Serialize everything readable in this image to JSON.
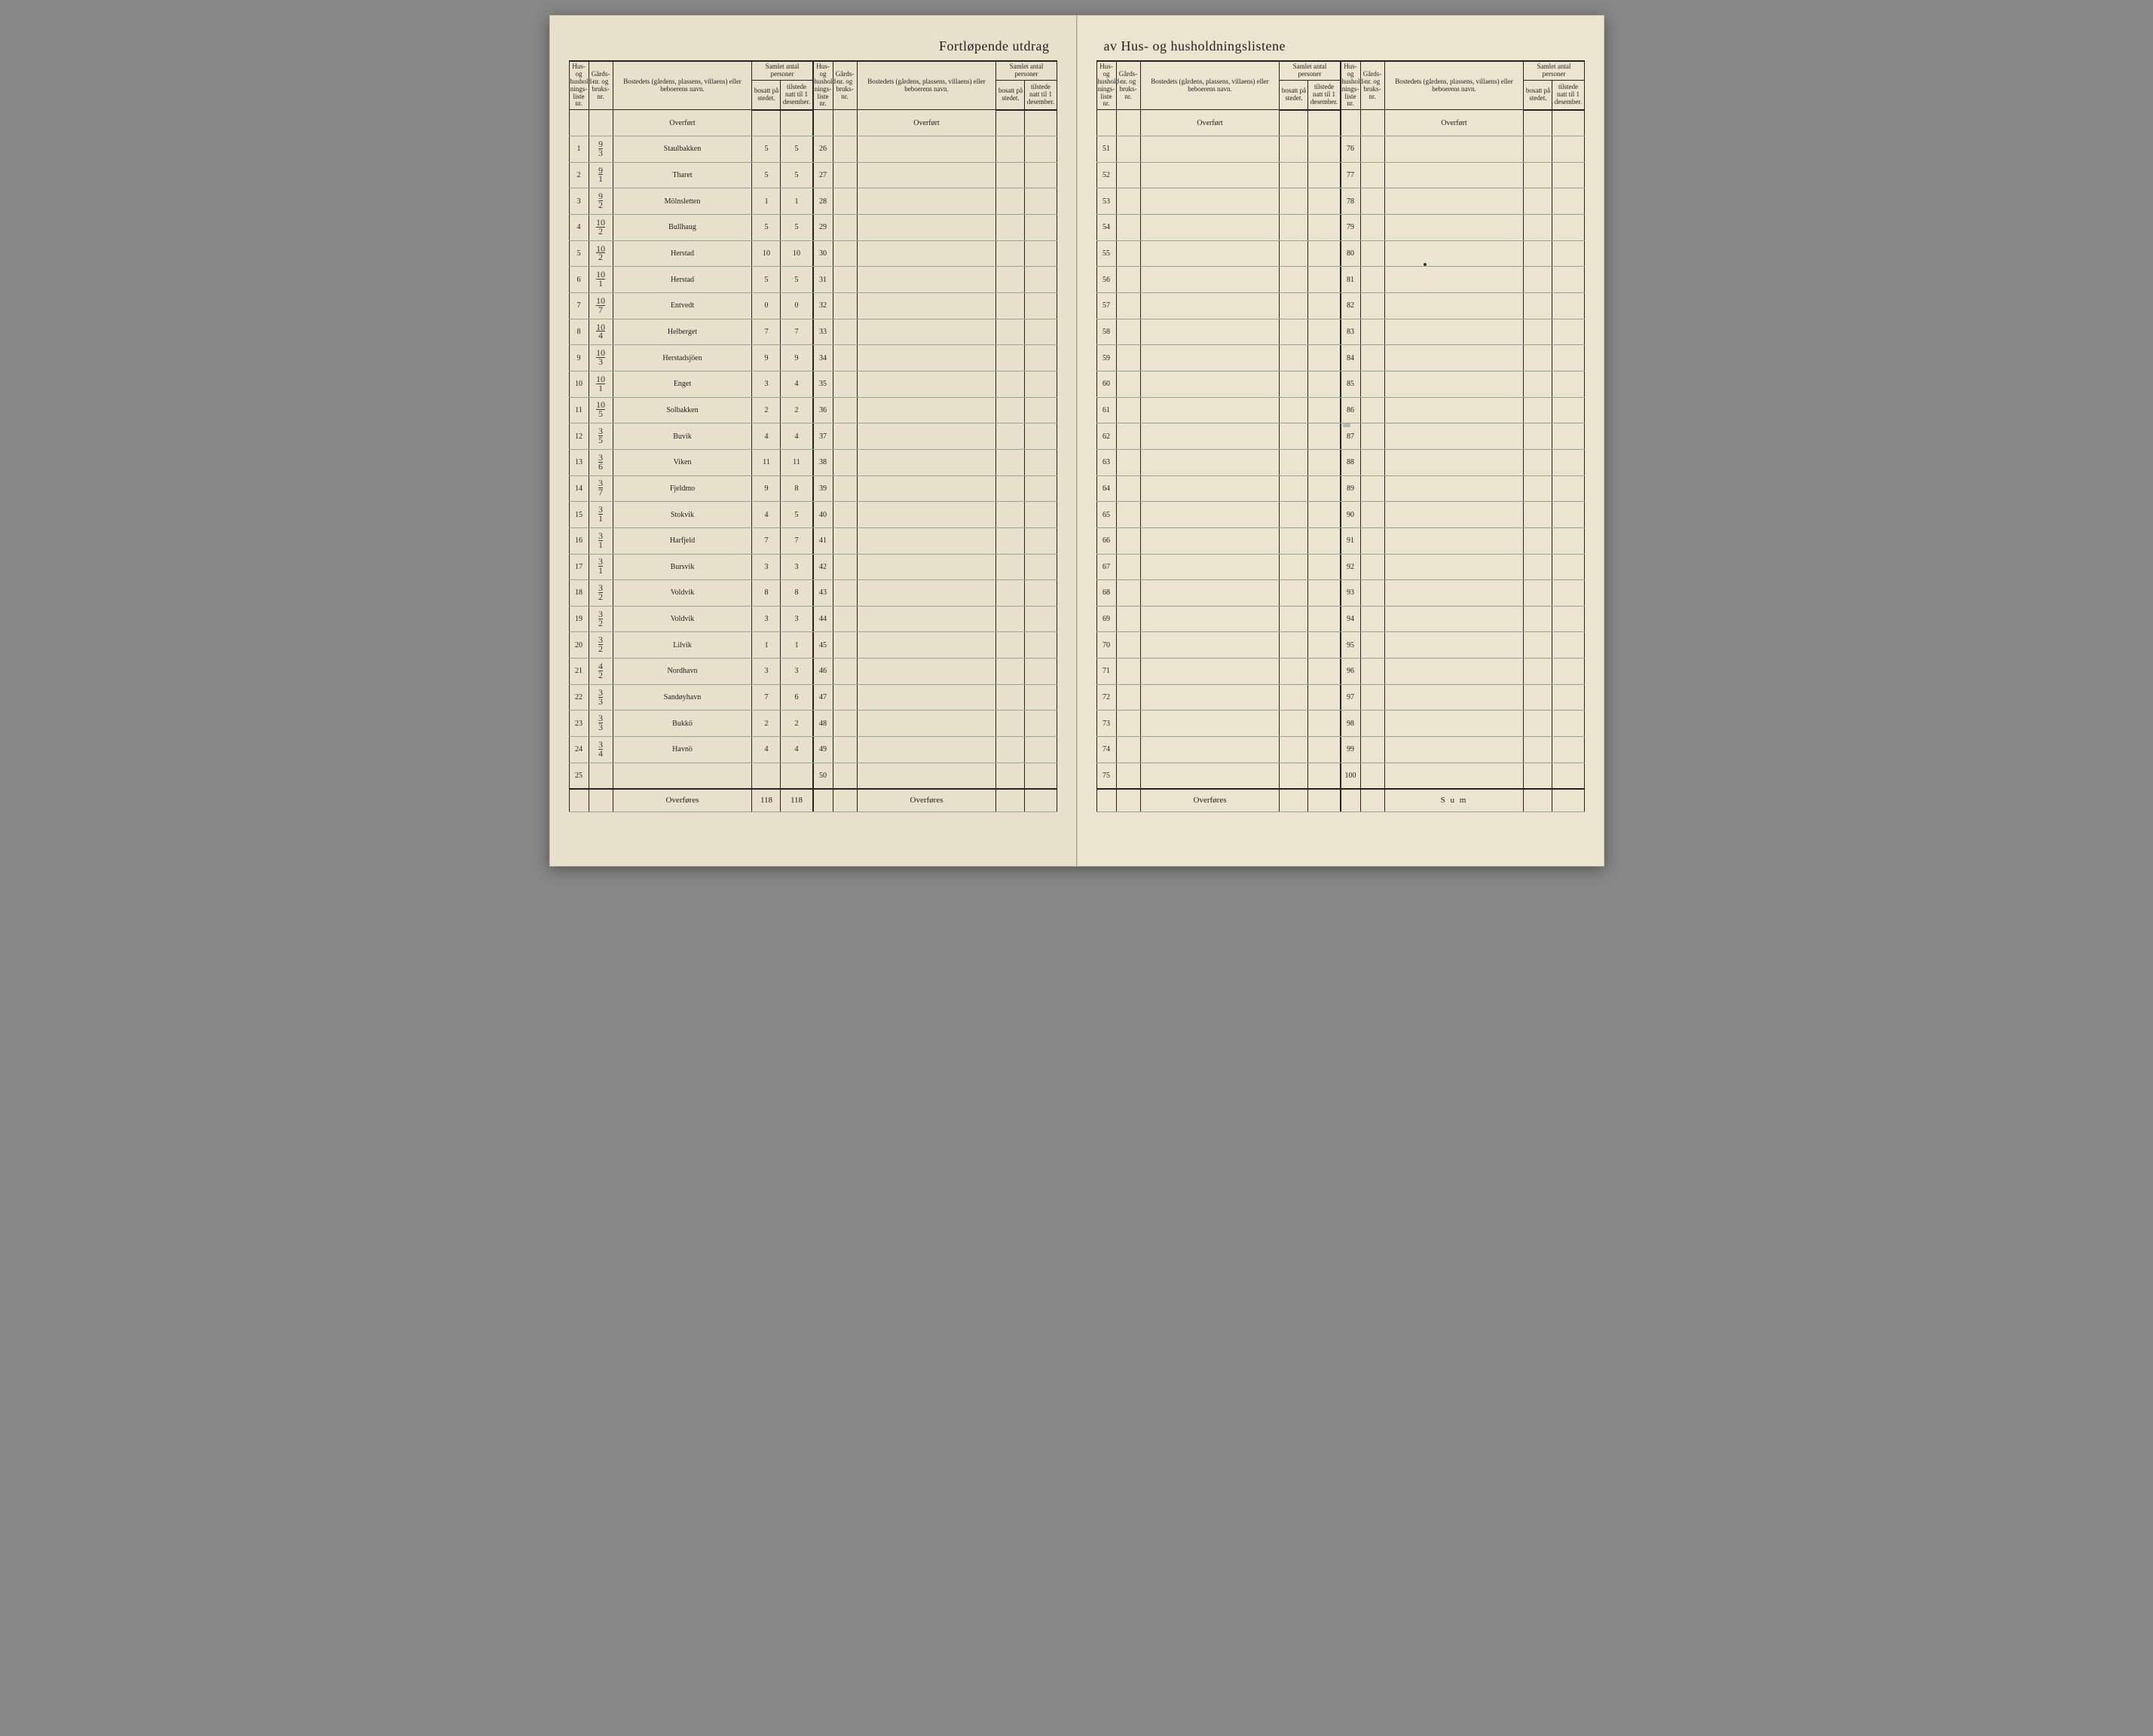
{
  "title_left": "Fortløpende  utdrag",
  "title_right": "av  Hus-  og  husholdningslistene",
  "headers": {
    "liste": "Hus- og hushold-nings-liste nr.",
    "gards": "Gårds-nr. og bruks-nr.",
    "bosted": "Bostedets (gårdens, plassens, villaens) eller beboerens navn.",
    "samlet_group": "Samlet antal personer",
    "bosatt": "bosatt på stedet.",
    "tilstede": "tilstede natt til 1 desember."
  },
  "overfort": "Overført",
  "overfores": "Overføres",
  "sum": "S u m",
  "entries": [
    {
      "n": "1",
      "g_top": "9",
      "g_bot": "3",
      "name": "Staulbakken",
      "b": "5",
      "t": "5"
    },
    {
      "n": "2",
      "g_top": "9",
      "g_bot": "1",
      "name": "Tharet",
      "b": "5",
      "t": "5"
    },
    {
      "n": "3",
      "g_top": "9",
      "g_bot": "2",
      "name": "Mölnsletten",
      "b": "1",
      "t": "1"
    },
    {
      "n": "4",
      "g_top": "10",
      "g_bot": "2",
      "name": "Bullhaug",
      "b": "5",
      "t": "5"
    },
    {
      "n": "5",
      "g_top": "10",
      "g_bot": "2",
      "name": "Herstad",
      "b": "10",
      "t": "10"
    },
    {
      "n": "6",
      "g_top": "10",
      "g_bot": "1",
      "name": "Herstad",
      "b": "5",
      "t": "5"
    },
    {
      "n": "7",
      "g_top": "10",
      "g_bot": "7",
      "name": "Entvedt",
      "b": "0",
      "t": "0"
    },
    {
      "n": "8",
      "g_top": "10",
      "g_bot": "4",
      "name": "Helberget",
      "b": "7",
      "t": "7"
    },
    {
      "n": "9",
      "g_top": "10",
      "g_bot": "3",
      "name": "Herstadsjöen",
      "b": "9",
      "t": "9"
    },
    {
      "n": "10",
      "g_top": "10",
      "g_bot": "1",
      "name": "Enget",
      "b": "3",
      "t": "4"
    },
    {
      "n": "11",
      "g_top": "10",
      "g_bot": "5",
      "name": "Solbakken",
      "b": "2",
      "t": "2"
    },
    {
      "n": "12",
      "g_top": "3",
      "g_bot": "5",
      "name": "Buvik",
      "b": "4",
      "t": "4"
    },
    {
      "n": "13",
      "g_top": "3",
      "g_bot": "6",
      "name": "Viken",
      "b": "11",
      "t": "11"
    },
    {
      "n": "14",
      "g_top": "3",
      "g_bot": "7",
      "name": "Fjeldmo",
      "b": "9",
      "t": "8"
    },
    {
      "n": "15",
      "g_top": "3",
      "g_bot": "1",
      "name": "Stokvik",
      "b": "4",
      "t": "5"
    },
    {
      "n": "16",
      "g_top": "3",
      "g_bot": "1",
      "name": "Harfjeld",
      "b": "7",
      "t": "7"
    },
    {
      "n": "17",
      "g_top": "3",
      "g_bot": "1",
      "name": "Bursvik",
      "b": "3",
      "t": "3"
    },
    {
      "n": "18",
      "g_top": "3",
      "g_bot": "2",
      "name": "Voldvik",
      "b": "8",
      "t": "8"
    },
    {
      "n": "19",
      "g_top": "3",
      "g_bot": "2",
      "name": "Voldvik",
      "b": "3",
      "t": "3"
    },
    {
      "n": "20",
      "g_top": "3",
      "g_bot": "2",
      "name": "Lilvik",
      "b": "1",
      "t": "1"
    },
    {
      "n": "21",
      "g_top": "4",
      "g_bot": "2",
      "name": "Nordhavn",
      "b": "3",
      "t": "3"
    },
    {
      "n": "22",
      "g_top": "3",
      "g_bot": "3",
      "name": "Sandøyhavn",
      "b": "7",
      "t": "6"
    },
    {
      "n": "23",
      "g_top": "3",
      "g_bot": "3",
      "name": "Bukkö",
      "b": "2",
      "t": "2"
    },
    {
      "n": "24",
      "g_top": "3",
      "g_bot": "4",
      "name": "Havnö",
      "b": "4",
      "t": "4"
    },
    {
      "n": "25",
      "g_top": "",
      "g_bot": "",
      "name": "",
      "b": "",
      "t": ""
    }
  ],
  "totals": {
    "b": "118",
    "t": "118"
  },
  "col2_rows": [
    "26",
    "27",
    "28",
    "29",
    "30",
    "31",
    "32",
    "33",
    "34",
    "35",
    "36",
    "37",
    "38",
    "39",
    "40",
    "41",
    "42",
    "43",
    "44",
    "45",
    "46",
    "47",
    "48",
    "49",
    "50"
  ],
  "col3_rows": [
    "51",
    "52",
    "53",
    "54",
    "55",
    "56",
    "57",
    "58",
    "59",
    "60",
    "61",
    "62",
    "63",
    "64",
    "65",
    "66",
    "67",
    "68",
    "69",
    "70",
    "71",
    "72",
    "73",
    "74",
    "75"
  ],
  "col4_rows": [
    "76",
    "77",
    "78",
    "79",
    "80",
    "81",
    "82",
    "83",
    "84",
    "85",
    "86",
    "87",
    "88",
    "89",
    "90",
    "91",
    "92",
    "93",
    "94",
    "95",
    "96",
    "97",
    "98",
    "99",
    "100"
  ]
}
